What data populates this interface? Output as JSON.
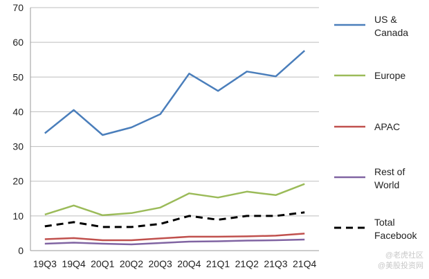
{
  "chart_data": {
    "type": "line",
    "categories": [
      "19Q3",
      "19Q4",
      "20Q1",
      "20Q2",
      "20Q3",
      "20Q4",
      "21Q1",
      "21Q2",
      "21Q3",
      "21Q4"
    ],
    "ylim": [
      0,
      70
    ],
    "yticks": [
      0,
      10,
      20,
      30,
      40,
      50,
      60,
      70
    ],
    "grid": true,
    "legend_position": "right",
    "series": [
      {
        "name_lines": [
          "US &",
          "Canada"
        ],
        "color": "#4a7ebb",
        "style": "solid",
        "values": [
          33.8,
          40.5,
          33.3,
          35.5,
          39.3,
          51.0,
          46.0,
          51.6,
          50.2,
          57.6
        ]
      },
      {
        "name_lines": [
          "Europe"
        ],
        "color": "#9bbb59",
        "style": "solid",
        "values": [
          10.4,
          13.0,
          10.2,
          10.8,
          12.4,
          16.5,
          15.3,
          17.0,
          16.0,
          19.2
        ]
      },
      {
        "name_lines": [
          "APAC"
        ],
        "color": "#c0504d",
        "style": "solid",
        "values": [
          3.3,
          3.6,
          3.0,
          3.0,
          3.5,
          4.0,
          4.0,
          4.1,
          4.3,
          4.9
        ]
      },
      {
        "name_lines": [
          "Rest of",
          "World"
        ],
        "color": "#8064a2",
        "style": "solid",
        "values": [
          2.0,
          2.3,
          2.0,
          1.8,
          2.2,
          2.6,
          2.7,
          2.9,
          3.0,
          3.2
        ]
      },
      {
        "name_lines": [
          "Total",
          "Facebook"
        ],
        "color": "#000000",
        "style": "dashed",
        "values": [
          7.0,
          8.2,
          6.8,
          6.8,
          7.7,
          10.0,
          8.9,
          10.0,
          10.0,
          11.0
        ]
      }
    ]
  },
  "watermark": "@老虎社区\n@美股投资网"
}
